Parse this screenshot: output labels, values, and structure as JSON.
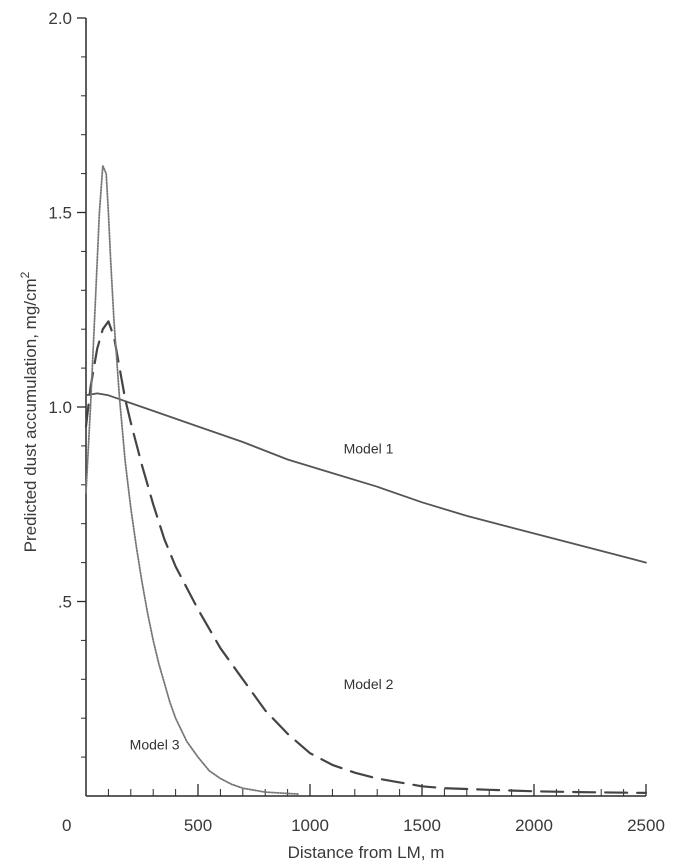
{
  "chart_data": {
    "type": "line",
    "title": "",
    "xlabel": "Distance from LM, m",
    "ylabel": "Predicted dust accumulation, mg/cm",
    "ylabel_superscript": "2",
    "xlim": [
      0,
      2500
    ],
    "ylim": [
      0,
      2.0
    ],
    "x_ticks": [
      0,
      500,
      1000,
      1500,
      2000,
      2500
    ],
    "x_tick_labels": [
      "0",
      "500",
      "1000",
      "1500",
      "2000",
      "2500"
    ],
    "y_ticks": [
      0.5,
      1.0,
      1.5,
      2.0
    ],
    "y_tick_labels": [
      ".5",
      "1.0",
      "1.5",
      "2.0"
    ],
    "grid": false,
    "series": [
      {
        "name": "Model 1",
        "style": "solid",
        "color": "#555555",
        "x": [
          0,
          50,
          100,
          150,
          200,
          300,
          500,
          700,
          900,
          1100,
          1300,
          1500,
          1700,
          1900,
          2100,
          2300,
          2500
        ],
        "y": [
          1.03,
          1.035,
          1.03,
          1.02,
          1.01,
          0.99,
          0.95,
          0.91,
          0.865,
          0.83,
          0.795,
          0.755,
          0.72,
          0.69,
          0.66,
          0.63,
          0.6
        ]
      },
      {
        "name": "Model 2",
        "style": "dashed",
        "color": "#444444",
        "x": [
          0,
          20,
          50,
          75,
          100,
          125,
          150,
          175,
          200,
          250,
          300,
          350,
          400,
          500,
          600,
          700,
          800,
          900,
          1000,
          1100,
          1200,
          1300,
          1400,
          1500,
          1600,
          1800,
          2000,
          2200,
          2500
        ],
        "y": [
          0.95,
          1.05,
          1.15,
          1.2,
          1.22,
          1.18,
          1.1,
          1.02,
          0.96,
          0.85,
          0.75,
          0.66,
          0.59,
          0.48,
          0.38,
          0.3,
          0.22,
          0.16,
          0.11,
          0.08,
          0.06,
          0.045,
          0.035,
          0.025,
          0.02,
          0.016,
          0.012,
          0.01,
          0.008
        ]
      },
      {
        "name": "Model 3",
        "style": "dotted",
        "color": "#777777",
        "x": [
          0,
          20,
          40,
          60,
          75,
          90,
          100,
          110,
          125,
          150,
          175,
          200,
          225,
          250,
          275,
          300,
          325,
          350,
          375,
          400,
          450,
          500,
          550,
          600,
          650,
          700,
          800,
          950
        ],
        "y": [
          0.78,
          1.0,
          1.25,
          1.5,
          1.62,
          1.6,
          1.5,
          1.38,
          1.22,
          1.02,
          0.86,
          0.74,
          0.64,
          0.55,
          0.47,
          0.4,
          0.34,
          0.29,
          0.24,
          0.2,
          0.14,
          0.1,
          0.065,
          0.045,
          0.03,
          0.02,
          0.01,
          0.005
        ]
      }
    ],
    "annotations": [
      {
        "text": "Model 1",
        "x": 1150,
        "y": 0.88
      },
      {
        "text": "Model 2",
        "x": 1150,
        "y": 0.275
      },
      {
        "text": "Model 3",
        "x": 195,
        "y": 0.12
      }
    ]
  }
}
